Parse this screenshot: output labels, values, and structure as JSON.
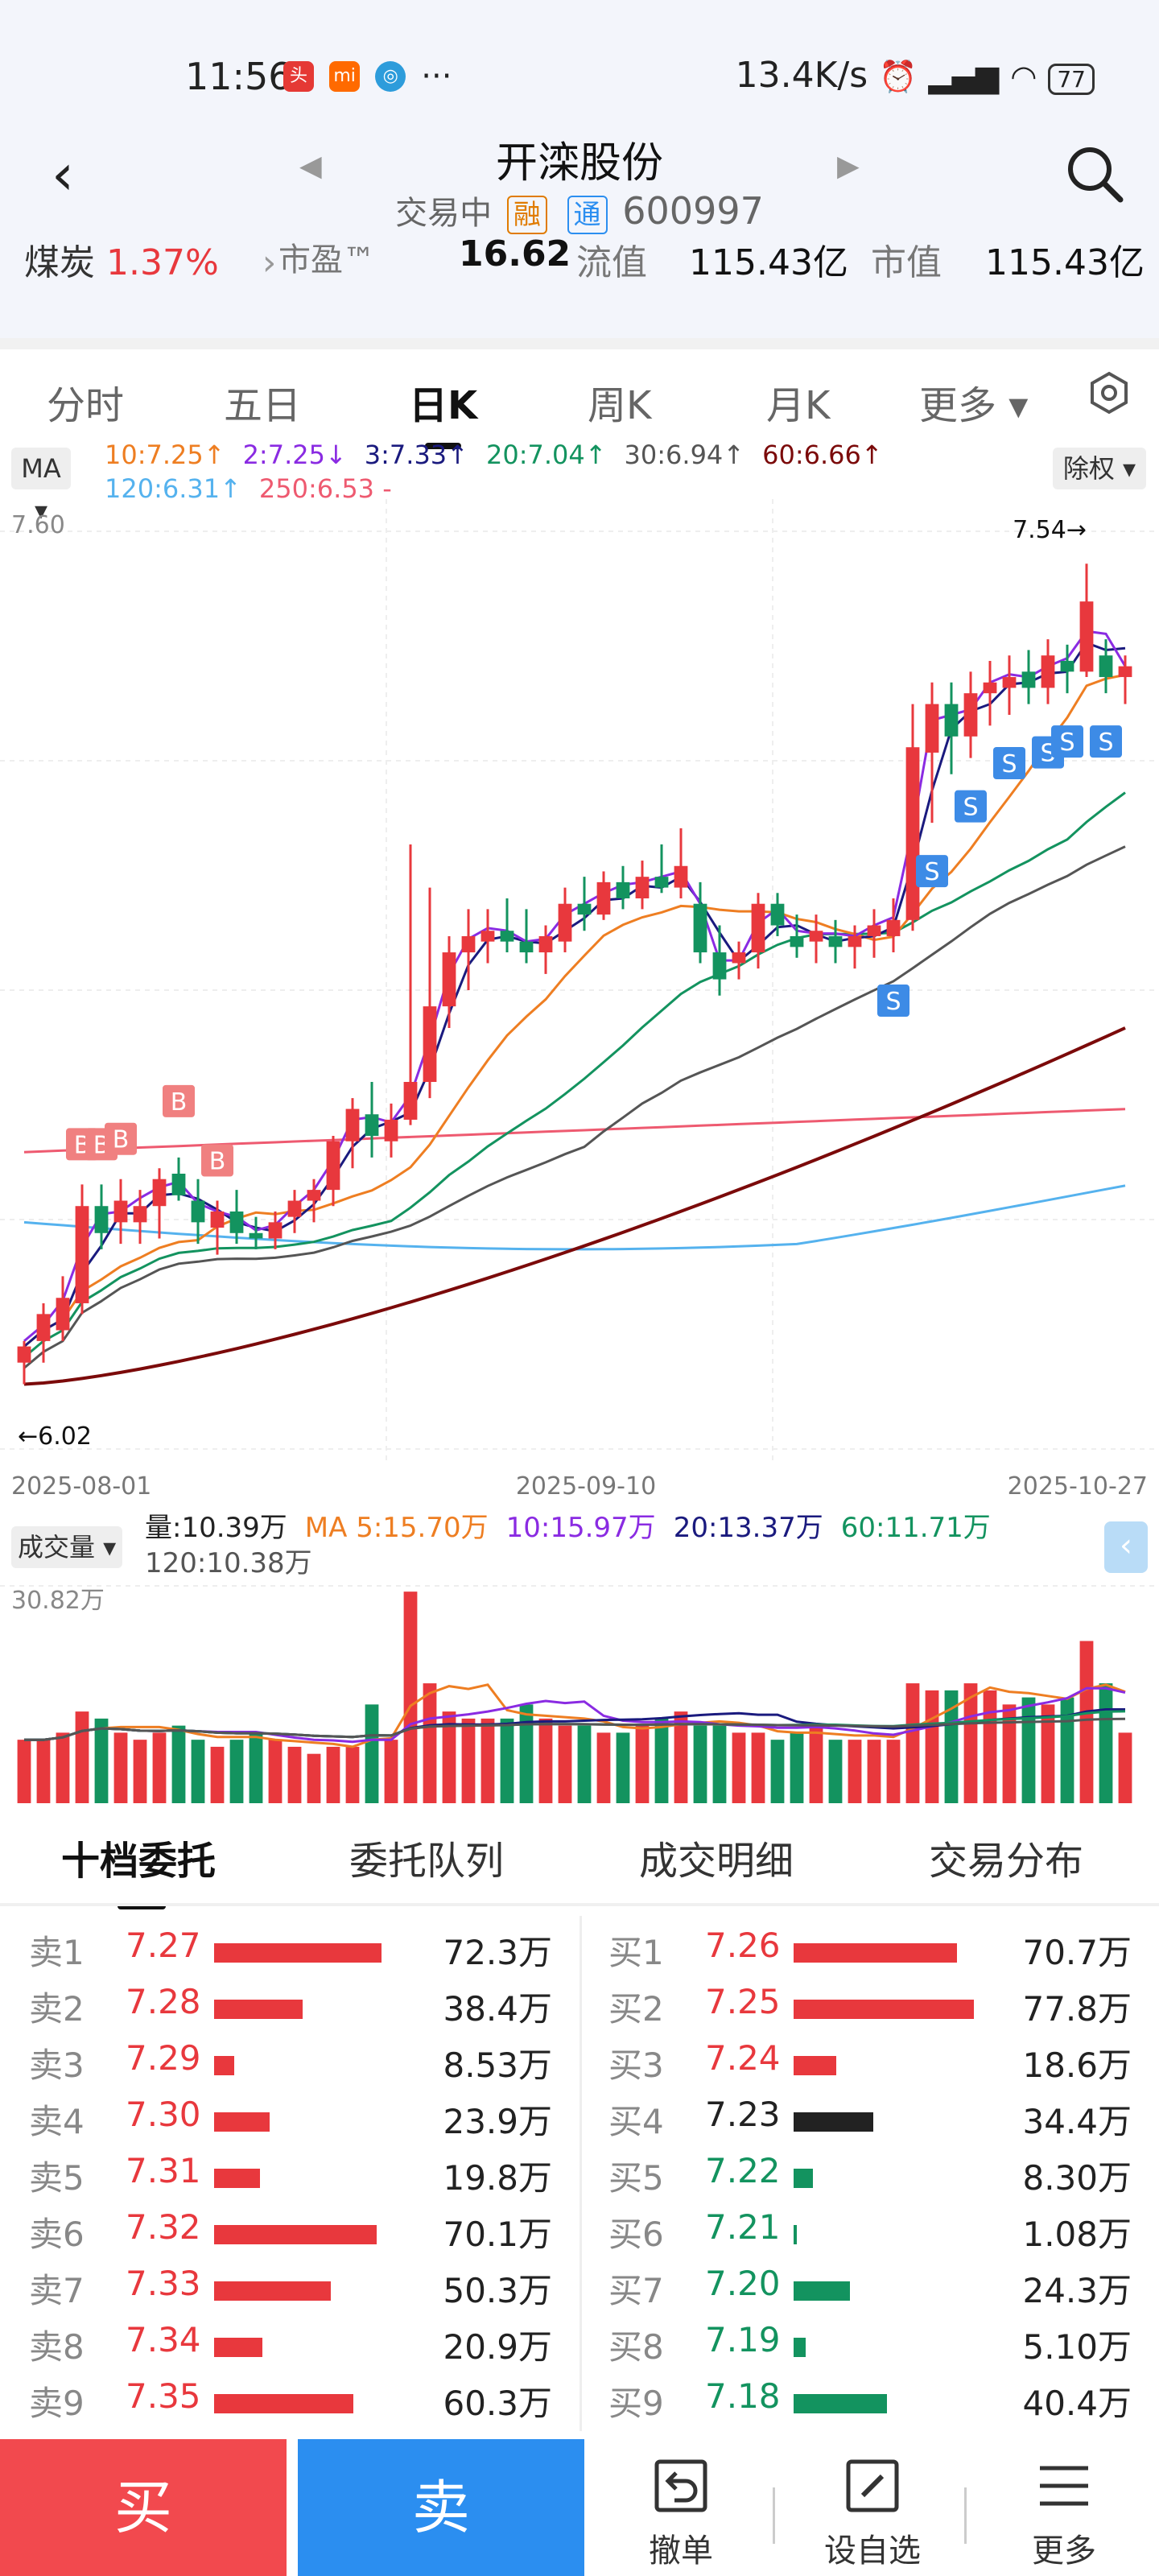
{
  "status_bar": {
    "time": "11:56",
    "speed": "13.4K/s",
    "battery": "77",
    "icons": [
      "toutiao-icon",
      "mi-icon",
      "app-icon",
      "more-dots-icon",
      "alarm-icon",
      "hd-signal-icon",
      "signal-icon",
      "wifi-icon",
      "battery-icon"
    ]
  },
  "header": {
    "title": "开滦股份",
    "status": "交易中",
    "tag1": "融",
    "tag2": "通",
    "code": "600997",
    "sector": "煤炭",
    "sector_change": "1.37%",
    "pe_label": "市盈™",
    "pe_value": "16.62",
    "float_label": "流值",
    "float_value": "115.43亿",
    "mcap_label": "市值",
    "mcap_value": "115.43亿"
  },
  "tabs": [
    "分时",
    "五日",
    "日K",
    "周K",
    "月K",
    "更多 ▾"
  ],
  "active_tab": 2,
  "ma_legend": {
    "ma_button": "MA ▾",
    "chuquan": "除权 ▾",
    "items": [
      {
        "text": "10:7.25↑",
        "color": "#ee7e22"
      },
      {
        "text": "2:7.25↓",
        "color": "#8a2be2"
      },
      {
        "text": "3:7.33↑",
        "color": "#1a1a7e"
      },
      {
        "text": "20:7.04↑",
        "color": "#13935f"
      },
      {
        "text": "30:6.94↑",
        "color": "#555555"
      },
      {
        "text": "60:6.66↑",
        "color": "#7b0a0a"
      },
      {
        "text": "120:6.31↑",
        "color": "#55b2ee"
      },
      {
        "text": "250:6.53 -",
        "color": "#ee5a70"
      }
    ]
  },
  "chart_data": {
    "type": "candlestick",
    "y_top_label": "7.60",
    "high_label": "7.54→",
    "low_label": "←6.02",
    "x_labels": [
      "2025-08-01",
      "2025-09-10",
      "2025-10-27"
    ],
    "buy_signal": "B",
    "sell_signal": "S",
    "candles": [
      {
        "o": 6.06,
        "h": 6.1,
        "l": 6.02,
        "c": 6.09
      },
      {
        "o": 6.1,
        "h": 6.17,
        "l": 6.06,
        "c": 6.15
      },
      {
        "o": 6.12,
        "h": 6.22,
        "l": 6.1,
        "c": 6.18
      },
      {
        "o": 6.17,
        "h": 6.39,
        "l": 6.15,
        "c": 6.35
      },
      {
        "o": 6.35,
        "h": 6.39,
        "l": 6.27,
        "c": 6.3
      },
      {
        "o": 6.32,
        "h": 6.4,
        "l": 6.28,
        "c": 6.36
      },
      {
        "o": 6.32,
        "h": 6.38,
        "l": 6.28,
        "c": 6.35
      },
      {
        "o": 6.35,
        "h": 6.42,
        "l": 6.29,
        "c": 6.4
      },
      {
        "o": 6.41,
        "h": 6.44,
        "l": 6.36,
        "c": 6.37
      },
      {
        "o": 6.36,
        "h": 6.4,
        "l": 6.28,
        "c": 6.32
      },
      {
        "o": 6.31,
        "h": 6.36,
        "l": 6.26,
        "c": 6.34
      },
      {
        "o": 6.34,
        "h": 6.38,
        "l": 6.28,
        "c": 6.3
      },
      {
        "o": 6.3,
        "h": 6.33,
        "l": 6.27,
        "c": 6.29
      },
      {
        "o": 6.29,
        "h": 6.34,
        "l": 6.27,
        "c": 6.32
      },
      {
        "o": 6.33,
        "h": 6.38,
        "l": 6.3,
        "c": 6.36
      },
      {
        "o": 6.36,
        "h": 6.4,
        "l": 6.32,
        "c": 6.38
      },
      {
        "o": 6.38,
        "h": 6.48,
        "l": 6.35,
        "c": 6.47
      },
      {
        "o": 6.47,
        "h": 6.55,
        "l": 6.42,
        "c": 6.53
      },
      {
        "o": 6.52,
        "h": 6.58,
        "l": 6.44,
        "c": 6.48
      },
      {
        "o": 6.47,
        "h": 6.54,
        "l": 6.44,
        "c": 6.51
      },
      {
        "o": 6.51,
        "h": 7.02,
        "l": 6.5,
        "c": 6.58
      },
      {
        "o": 6.58,
        "h": 6.94,
        "l": 6.55,
        "c": 6.72
      },
      {
        "o": 6.72,
        "h": 6.85,
        "l": 6.68,
        "c": 6.82
      },
      {
        "o": 6.82,
        "h": 6.9,
        "l": 6.75,
        "c": 6.85
      },
      {
        "o": 6.84,
        "h": 6.9,
        "l": 6.8,
        "c": 6.86
      },
      {
        "o": 6.86,
        "h": 6.92,
        "l": 6.82,
        "c": 6.84
      },
      {
        "o": 6.84,
        "h": 6.9,
        "l": 6.8,
        "c": 6.82
      },
      {
        "o": 6.82,
        "h": 6.87,
        "l": 6.78,
        "c": 6.85
      },
      {
        "o": 6.84,
        "h": 6.94,
        "l": 6.82,
        "c": 6.91
      },
      {
        "o": 6.91,
        "h": 6.96,
        "l": 6.86,
        "c": 6.89
      },
      {
        "o": 6.89,
        "h": 6.97,
        "l": 6.88,
        "c": 6.95
      },
      {
        "o": 6.95,
        "h": 6.98,
        "l": 6.9,
        "c": 6.92
      },
      {
        "o": 6.92,
        "h": 6.99,
        "l": 6.9,
        "c": 6.96
      },
      {
        "o": 6.96,
        "h": 7.02,
        "l": 6.93,
        "c": 6.94
      },
      {
        "o": 6.94,
        "h": 7.05,
        "l": 6.92,
        "c": 6.98
      },
      {
        "o": 6.91,
        "h": 6.95,
        "l": 6.8,
        "c": 6.82
      },
      {
        "o": 6.82,
        "h": 6.87,
        "l": 6.74,
        "c": 6.77
      },
      {
        "o": 6.8,
        "h": 6.84,
        "l": 6.77,
        "c": 6.82
      },
      {
        "o": 6.82,
        "h": 6.93,
        "l": 6.79,
        "c": 6.91
      },
      {
        "o": 6.91,
        "h": 6.93,
        "l": 6.85,
        "c": 6.87
      },
      {
        "o": 6.85,
        "h": 6.89,
        "l": 6.81,
        "c": 6.83
      },
      {
        "o": 6.84,
        "h": 6.89,
        "l": 6.8,
        "c": 6.86
      },
      {
        "o": 6.85,
        "h": 6.88,
        "l": 6.8,
        "c": 6.83
      },
      {
        "o": 6.83,
        "h": 6.87,
        "l": 6.79,
        "c": 6.85
      },
      {
        "o": 6.85,
        "h": 6.9,
        "l": 6.81,
        "c": 6.87
      },
      {
        "o": 6.85,
        "h": 6.92,
        "l": 6.82,
        "c": 6.88
      },
      {
        "o": 6.88,
        "h": 7.28,
        "l": 6.86,
        "c": 7.2
      },
      {
        "o": 7.19,
        "h": 7.32,
        "l": 7.06,
        "c": 7.28
      },
      {
        "o": 7.28,
        "h": 7.32,
        "l": 7.15,
        "c": 7.22
      },
      {
        "o": 7.22,
        "h": 7.34,
        "l": 7.18,
        "c": 7.3
      },
      {
        "o": 7.3,
        "h": 7.36,
        "l": 7.24,
        "c": 7.32
      },
      {
        "o": 7.31,
        "h": 7.37,
        "l": 7.26,
        "c": 7.33
      },
      {
        "o": 7.34,
        "h": 7.38,
        "l": 7.28,
        "c": 7.31
      },
      {
        "o": 7.31,
        "h": 7.4,
        "l": 7.28,
        "c": 7.37
      },
      {
        "o": 7.36,
        "h": 7.39,
        "l": 7.3,
        "c": 7.34
      },
      {
        "o": 7.34,
        "h": 7.54,
        "l": 7.33,
        "c": 7.47
      },
      {
        "o": 7.37,
        "h": 7.4,
        "l": 7.3,
        "c": 7.33
      },
      {
        "o": 7.33,
        "h": 7.37,
        "l": 7.28,
        "c": 7.35
      }
    ]
  },
  "volume": {
    "selector": "成交量 ▾",
    "legend": [
      {
        "text": "量:10.39万",
        "color": "#222222"
      },
      {
        "text": "MA 5:15.70万",
        "color": "#ee7e22"
      },
      {
        "text": "10:15.97万",
        "color": "#8a2be2"
      },
      {
        "text": "20:13.37万",
        "color": "#1a1a7e"
      },
      {
        "text": "60:11.71万",
        "color": "#13935f"
      },
      {
        "text": "120:10.38万",
        "color": "#555555"
      }
    ],
    "top_label": "30.82万",
    "bars": [
      9,
      9,
      10,
      13,
      12,
      10,
      9,
      10,
      11,
      9,
      8,
      9,
      10,
      9,
      8,
      7,
      8,
      8,
      14,
      9,
      30,
      17,
      13,
      12,
      12,
      12,
      14,
      12,
      11,
      11,
      10,
      10,
      11,
      12,
      13,
      11,
      11,
      10,
      10,
      9,
      10,
      11,
      9,
      9,
      9,
      9,
      17,
      16,
      16,
      17,
      16,
      14,
      15,
      14,
      15,
      23,
      17,
      10
    ]
  },
  "orderbook": {
    "tabs": [
      "十档委托",
      "委托队列",
      "成交明细",
      "交易分布"
    ],
    "active": 0,
    "sell": [
      {
        "label": "卖1",
        "price": "7.27",
        "volume": "72.3万",
        "size": 72.3
      },
      {
        "label": "卖2",
        "price": "7.28",
        "volume": "38.4万",
        "size": 38.4
      },
      {
        "label": "卖3",
        "price": "7.29",
        "volume": "8.53万",
        "size": 8.53
      },
      {
        "label": "卖4",
        "price": "7.30",
        "volume": "23.9万",
        "size": 23.9
      },
      {
        "label": "卖5",
        "price": "7.31",
        "volume": "19.8万",
        "size": 19.8
      },
      {
        "label": "卖6",
        "price": "7.32",
        "volume": "70.1万",
        "size": 70.1
      },
      {
        "label": "卖7",
        "price": "7.33",
        "volume": "50.3万",
        "size": 50.3
      },
      {
        "label": "卖8",
        "price": "7.34",
        "volume": "20.9万",
        "size": 20.9
      },
      {
        "label": "卖9",
        "price": "7.35",
        "volume": "60.3万",
        "size": 60.3
      }
    ],
    "buy": [
      {
        "label": "买1",
        "price": "7.26",
        "volume": "70.7万",
        "size": 70.7,
        "color": "#e8383d"
      },
      {
        "label": "买2",
        "price": "7.25",
        "volume": "77.8万",
        "size": 77.8,
        "color": "#e8383d"
      },
      {
        "label": "买3",
        "price": "7.24",
        "volume": "18.6万",
        "size": 18.6,
        "color": "#e8383d"
      },
      {
        "label": "买4",
        "price": "7.23",
        "volume": "34.4万",
        "size": 34.4,
        "color": "#222222"
      },
      {
        "label": "买5",
        "price": "7.22",
        "volume": "8.30万",
        "size": 8.3,
        "color": "#13935f"
      },
      {
        "label": "买6",
        "price": "7.21",
        "volume": "1.08万",
        "size": 1.08,
        "color": "#13935f"
      },
      {
        "label": "买7",
        "price": "7.20",
        "volume": "24.3万",
        "size": 24.3,
        "color": "#13935f"
      },
      {
        "label": "买8",
        "price": "7.19",
        "volume": "5.10万",
        "size": 5.1,
        "color": "#13935f"
      },
      {
        "label": "买9",
        "price": "7.18",
        "volume": "40.4万",
        "size": 40.4,
        "color": "#13935f"
      }
    ]
  },
  "bottom_bar": {
    "buy": "买",
    "sell": "卖",
    "cancel": "撤单",
    "watch": "设自选",
    "more": "更多"
  },
  "colors": {
    "up": "#e8383d",
    "down": "#13935f",
    "buy_btn": "#f2494e",
    "sell_btn": "#2b8ef0"
  }
}
